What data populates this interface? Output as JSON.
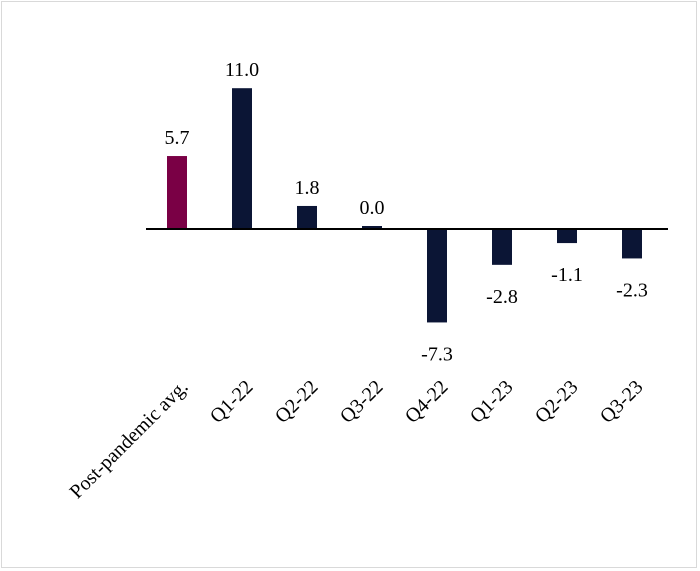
{
  "chart_data": {
    "type": "bar",
    "title": "",
    "xlabel": "",
    "ylabel": "",
    "categories": [
      "Post-pandemic avg.",
      "Q1-22",
      "Q2-22",
      "Q3-22",
      "Q4-22",
      "Q1-23",
      "Q2-23",
      "Q3-23"
    ],
    "values": [
      5.7,
      11.0,
      1.8,
      0.0,
      -7.3,
      -2.8,
      -1.1,
      -2.3
    ],
    "value_labels": [
      "5.7",
      "11.0",
      "1.8",
      "0.0",
      "-7.3",
      "-2.8",
      "-1.1",
      "-2.3"
    ],
    "bar_colors": [
      "#7a0045",
      "#0b1535",
      "#0b1535",
      "#0b1535",
      "#0b1535",
      "#0b1535",
      "#0b1535",
      "#0b1535"
    ],
    "ylim": [
      -10,
      12
    ],
    "grid": false,
    "legend": "none"
  }
}
